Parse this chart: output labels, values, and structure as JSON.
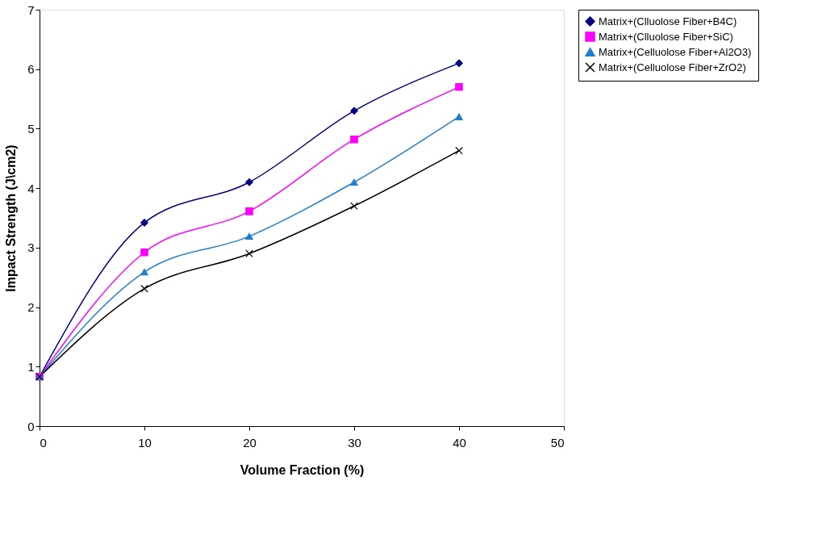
{
  "chart_data": {
    "type": "line",
    "xlabel": "Volume Fraction (%)",
    "ylabel": "Impact Strength (J\\cm2)",
    "x": [
      0,
      10,
      20,
      30,
      40
    ],
    "series": [
      {
        "name": "Matrix+(Clluolose Fiber+B4C)",
        "color": "#000080",
        "marker": "diamond",
        "values": [
          0.83,
          3.42,
          4.1,
          5.3,
          6.1
        ]
      },
      {
        "name": "Matrix+(Clluolose Fiber+SiC)",
        "color": "#ff00ff",
        "marker": "square",
        "values": [
          0.83,
          2.92,
          3.61,
          4.82,
          5.7
        ]
      },
      {
        "name": "Matrix+(Celluolose Fiber+Al2O3)",
        "color": "#1f7fd0",
        "marker": "triangle",
        "values": [
          0.83,
          2.59,
          3.19,
          4.1,
          5.2
        ]
      },
      {
        "name": "Matrix+(Celluolose Fiber+ZrO2)",
        "color": "#000000",
        "marker": "cross",
        "values": [
          0.83,
          2.31,
          2.9,
          3.7,
          4.63
        ]
      }
    ],
    "xlim": [
      0,
      50
    ],
    "xticks": [
      0,
      10,
      20,
      30,
      40,
      50
    ],
    "ylim": [
      0,
      7
    ],
    "yticks": [
      0,
      1,
      2,
      3,
      4,
      5,
      6,
      7
    ],
    "grid": false,
    "legend": "right",
    "line_style": "solid"
  }
}
